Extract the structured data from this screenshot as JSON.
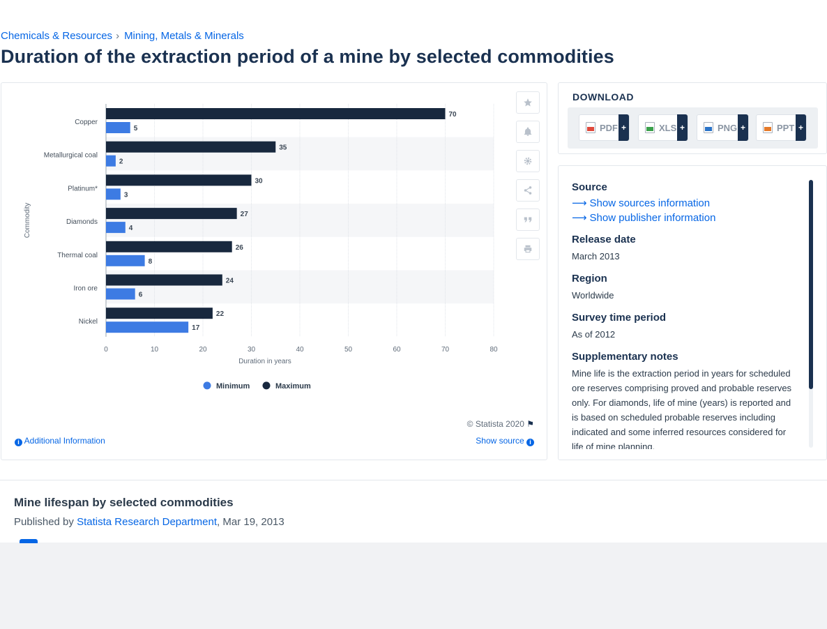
{
  "breadcrumb": {
    "items": [
      "Chemicals & Resources",
      "Mining, Metals & Minerals"
    ],
    "separator": "›"
  },
  "page_title": "Duration of the extraction period of a mine by selected commodities",
  "colors": {
    "minimum": "#3d7be3",
    "maximum": "#18283e",
    "link": "#0666e5"
  },
  "chart_data": {
    "type": "bar",
    "orientation": "horizontal",
    "categories": [
      "Copper",
      "Metallurgical coal",
      "Platinum*",
      "Diamonds",
      "Thermal coal",
      "Iron ore",
      "Nickel"
    ],
    "series": [
      {
        "name": "Maximum",
        "values": [
          70,
          35,
          30,
          27,
          26,
          24,
          22
        ]
      },
      {
        "name": "Minimum",
        "values": [
          5,
          2,
          3,
          4,
          8,
          6,
          17
        ]
      }
    ],
    "xlabel": "Duration in years",
    "ylabel": "Commodity",
    "xlim": [
      0,
      80
    ],
    "xticks": [
      0,
      10,
      20,
      30,
      40,
      50,
      60,
      70,
      80
    ],
    "grid": true,
    "legend": {
      "position": "bottom",
      "order": [
        "Minimum",
        "Maximum"
      ]
    }
  },
  "tools": [
    "star-icon",
    "bell-icon",
    "gear-icon",
    "share-icon",
    "quote-icon",
    "print-icon"
  ],
  "footer": {
    "copyright": "© Statista 2020",
    "additional_info": "Additional Information",
    "show_source": "Show source"
  },
  "download": {
    "title": "DOWNLOAD",
    "formats": [
      {
        "label": "PDF",
        "color": "#e0493c"
      },
      {
        "label": "XLS",
        "color": "#3aa14b"
      },
      {
        "label": "PNG",
        "color": "#2b74c8"
      },
      {
        "label": "PPT",
        "color": "#e57a2a"
      }
    ],
    "plus": "+"
  },
  "info": {
    "source_heading": "Source",
    "show_sources": "Show sources information",
    "show_publisher": "Show publisher information",
    "release_heading": "Release date",
    "release_value": "March 2013",
    "region_heading": "Region",
    "region_value": "Worldwide",
    "survey_heading": "Survey time period",
    "survey_value": "As of 2012",
    "notes_heading": "Supplementary notes",
    "notes_value": "Mine life is the extraction period in years for scheduled ore reserves comprising proved and probable reserves only. For diamonds, life of mine (years) is reported and is based on scheduled probable reserves including indicated and some inferred resources considered for life of mine planning."
  },
  "publication": {
    "title": "Mine lifespan by selected commodities",
    "published_by_prefix": "Published by",
    "publisher": "Statista Research Department",
    "date": ", Mar 19, 2013"
  }
}
